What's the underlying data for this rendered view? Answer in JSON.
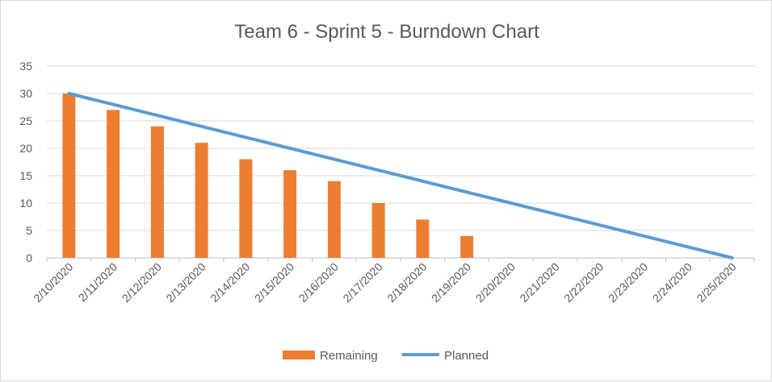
{
  "chart_data": {
    "type": "bar",
    "title": "Team 6 - Sprint 5 - Burndown Chart",
    "xlabel": "",
    "ylabel": "",
    "categories": [
      "2/10/2020",
      "2/11/2020",
      "2/12/2020",
      "2/13/2020",
      "2/14/2020",
      "2/15/2020",
      "2/16/2020",
      "2/17/2020",
      "2/18/2020",
      "2/19/2020",
      "2/20/2020",
      "2/21/2020",
      "2/22/2020",
      "2/23/2020",
      "2/24/2020",
      "2/25/2020"
    ],
    "ylim": [
      0,
      35
    ],
    "yticks": [
      0,
      5,
      10,
      15,
      20,
      25,
      30,
      35
    ],
    "grid": true,
    "legend_position": "bottom",
    "series": [
      {
        "name": "Remaining",
        "type": "bar",
        "color": "#ED7D31",
        "values": [
          30,
          27,
          24,
          21,
          18,
          16,
          14,
          10,
          7,
          4,
          null,
          null,
          null,
          null,
          null,
          null
        ]
      },
      {
        "name": "Planned",
        "type": "line",
        "color": "#5B9BD5",
        "values": [
          30,
          28,
          26,
          24,
          22,
          20,
          18,
          16,
          14,
          12,
          10,
          8,
          6,
          4,
          2,
          0
        ]
      }
    ]
  }
}
